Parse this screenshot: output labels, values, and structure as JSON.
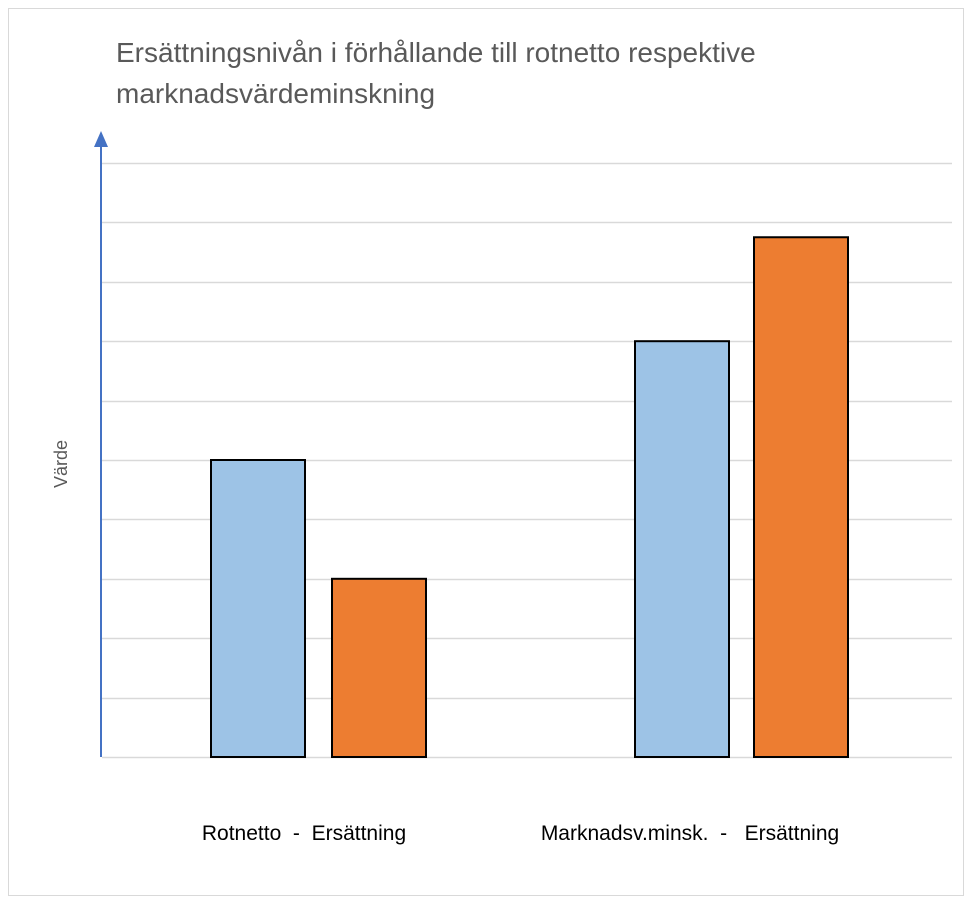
{
  "chart_data": {
    "type": "bar",
    "title": "Ersättningsnivån i förhållande till rotnetto respektive marknadsvärdeminskning",
    "ylabel": "Värde",
    "xlabel": "",
    "categories": [
      "Rotnetto  -  Ersättning",
      "Marknadsv.minsk.  -   Ersättning"
    ],
    "bar_values": [
      [
        5,
        3
      ],
      [
        7,
        8.75
      ]
    ],
    "bar_colors": [
      "#9dc3e6",
      "#ed7d31"
    ],
    "ylim": [
      0,
      10
    ],
    "y_gridline_step": 1,
    "grid": true,
    "axis_color": "#4472c4",
    "grid_color": "#d9d9d9",
    "legend": "none"
  }
}
